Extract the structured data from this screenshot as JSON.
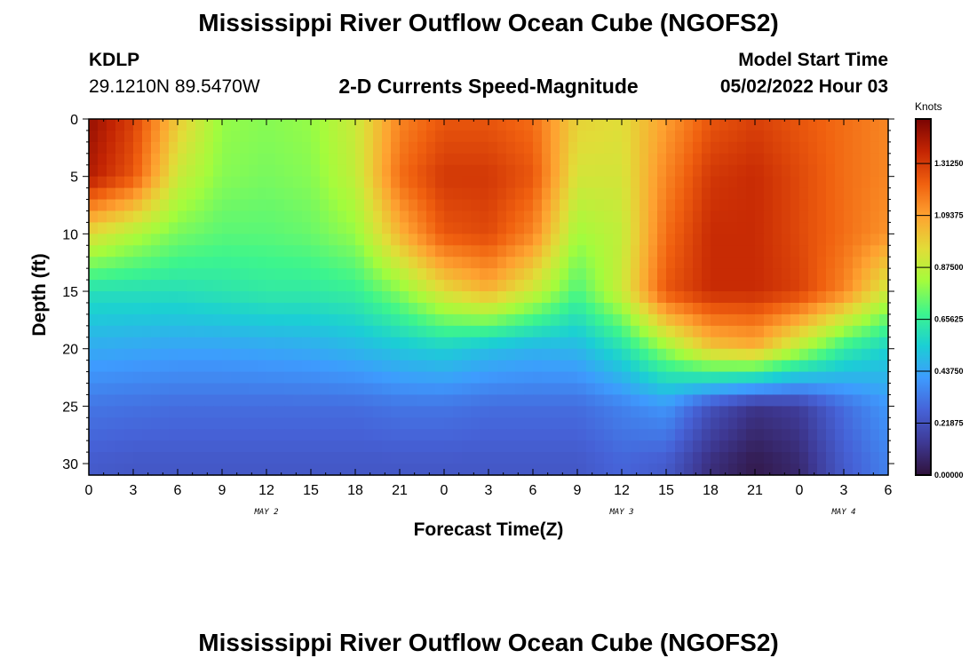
{
  "page": {
    "title": "Mississippi River Outflow Ocean Cube (NGOFS2)",
    "repeat_title": "Mississippi River Outflow Ocean Cube (NGOFS2)",
    "station_id": "KDLP",
    "station_coords": "29.1210N  89.5470W",
    "plot_title": "2-D Currents Speed-Magnitude",
    "model_start_label": "Model Start Time",
    "model_start_value": "05/02/2022 Hour 03"
  },
  "chart_data": {
    "type": "heatmap",
    "title": "2-D Currents Speed-Magnitude",
    "xlabel": "Forecast Time(Z)",
    "ylabel": "Depth (ft)",
    "x_hours_range": [
      0,
      54
    ],
    "y_range": [
      0,
      31
    ],
    "y_inverted": true,
    "x_ticks": [
      "0",
      "3",
      "6",
      "9",
      "12",
      "15",
      "18",
      "21",
      "0",
      "3",
      "6",
      "9",
      "12",
      "15",
      "18",
      "21",
      "0",
      "3",
      "6"
    ],
    "y_ticks": [
      "0",
      "5",
      "10",
      "15",
      "20",
      "25",
      "30"
    ],
    "date_labels": [
      {
        "text": "MAY 2",
        "hour": 12
      },
      {
        "text": "MAY 3",
        "hour": 36
      },
      {
        "text": "MAY 4",
        "hour": 51
      }
    ],
    "colorbar": {
      "unit": "Knots",
      "min": 0.0,
      "max": 1.5,
      "labels": [
        "1.31250",
        "1.09375",
        "0.87500",
        "0.65625",
        "0.43750",
        "0.21875",
        "0.00000"
      ],
      "colors": [
        "#30123b",
        "#3e3994",
        "#4662d7",
        "#3e9bfe",
        "#1bcfd4",
        "#3df58d",
        "#a4fc3c",
        "#e2dc38",
        "#fea331",
        "#f0600f",
        "#c42503",
        "#7a0403"
      ]
    },
    "series": [
      {
        "depth_ft": 0,
        "speed_kn": [
          1.45,
          1.3,
          1.0,
          0.8,
          0.78,
          0.8,
          0.9,
          1.15,
          1.25,
          1.25,
          1.2,
          0.98,
          0.95,
          1.1,
          1.25,
          1.3,
          1.25,
          1.2,
          1.15
        ]
      },
      {
        "depth_ft": 5,
        "speed_kn": [
          1.4,
          1.25,
          0.9,
          0.78,
          0.76,
          0.78,
          0.88,
          1.2,
          1.32,
          1.32,
          1.25,
          0.92,
          0.92,
          1.15,
          1.32,
          1.35,
          1.28,
          1.2,
          1.15
        ]
      },
      {
        "depth_ft": 10,
        "speed_kn": [
          0.95,
          0.85,
          0.76,
          0.72,
          0.72,
          0.74,
          0.8,
          1.05,
          1.25,
          1.28,
          1.15,
          0.82,
          0.88,
          1.2,
          1.35,
          1.35,
          1.28,
          1.2,
          1.12
        ]
      },
      {
        "depth_ft": 15,
        "speed_kn": [
          0.6,
          0.6,
          0.6,
          0.62,
          0.64,
          0.64,
          0.66,
          0.78,
          0.95,
          1.05,
          0.9,
          0.7,
          0.9,
          1.25,
          1.35,
          1.35,
          1.3,
          1.15,
          0.9
        ]
      },
      {
        "depth_ft": 20,
        "speed_kn": [
          0.45,
          0.44,
          0.43,
          0.43,
          0.44,
          0.45,
          0.48,
          0.52,
          0.55,
          0.5,
          0.47,
          0.48,
          0.6,
          0.8,
          1.0,
          1.05,
          0.85,
          0.65,
          0.55
        ]
      },
      {
        "depth_ft": 25,
        "speed_kn": [
          0.32,
          0.31,
          0.3,
          0.3,
          0.3,
          0.3,
          0.3,
          0.32,
          0.32,
          0.3,
          0.3,
          0.3,
          0.35,
          0.4,
          0.22,
          0.12,
          0.15,
          0.3,
          0.4
        ]
      },
      {
        "depth_ft": 30,
        "speed_kn": [
          0.25,
          0.24,
          0.24,
          0.24,
          0.24,
          0.24,
          0.24,
          0.24,
          0.24,
          0.24,
          0.24,
          0.24,
          0.28,
          0.25,
          0.1,
          0.03,
          0.08,
          0.25,
          0.35
        ]
      }
    ]
  }
}
